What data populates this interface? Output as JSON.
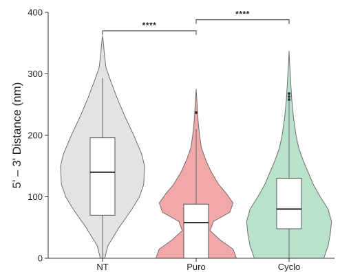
{
  "chart_data": {
    "type": "violin",
    "title": "",
    "ylabel": "5' – 3' Distance (nm)",
    "xlabel": "",
    "ylim": [
      0,
      400
    ],
    "yticks": [
      0,
      100,
      200,
      300,
      400
    ],
    "categories": [
      "NT",
      "Puro",
      "Cyclo"
    ],
    "series": [
      {
        "category": "NT",
        "color": "#e3e3e3",
        "min": 0,
        "q1": 70,
        "median": 140,
        "q3": 196,
        "max": 293,
        "density": [
          [
            0,
            0.05
          ],
          [
            20,
            0.12
          ],
          [
            50,
            0.38
          ],
          [
            80,
            0.68
          ],
          [
            100,
            0.85
          ],
          [
            120,
            0.95
          ],
          [
            150,
            0.97
          ],
          [
            170,
            0.9
          ],
          [
            200,
            0.72
          ],
          [
            230,
            0.52
          ],
          [
            260,
            0.34
          ],
          [
            290,
            0.18
          ],
          [
            310,
            0.08
          ],
          [
            330,
            0.045
          ],
          [
            350,
            0.02
          ],
          [
            362,
            0
          ]
        ]
      },
      {
        "category": "Puro",
        "color": "#f2a8a8",
        "min": 0,
        "q1": 0,
        "median": 58,
        "q3": 88,
        "max": 210,
        "density": [
          [
            0,
            0.93
          ],
          [
            15,
            0.85
          ],
          [
            30,
            0.55
          ],
          [
            45,
            0.32
          ],
          [
            60,
            0.4
          ],
          [
            75,
            0.78
          ],
          [
            90,
            0.85
          ],
          [
            105,
            0.7
          ],
          [
            120,
            0.52
          ],
          [
            140,
            0.35
          ],
          [
            160,
            0.22
          ],
          [
            180,
            0.12
          ],
          [
            200,
            0.08
          ],
          [
            220,
            0.05
          ],
          [
            240,
            0.03
          ],
          [
            260,
            0.015
          ],
          [
            275,
            0
          ]
        ],
        "outliers": [
          237
        ]
      },
      {
        "category": "Cyclo",
        "color": "#b8e2cb",
        "min": 0,
        "q1": 48,
        "median": 80,
        "q3": 130,
        "max": 255,
        "density": [
          [
            0,
            0.8
          ],
          [
            20,
            0.9
          ],
          [
            40,
            0.95
          ],
          [
            60,
            0.98
          ],
          [
            80,
            0.9
          ],
          [
            100,
            0.72
          ],
          [
            120,
            0.56
          ],
          [
            140,
            0.44
          ],
          [
            160,
            0.32
          ],
          [
            180,
            0.22
          ],
          [
            200,
            0.16
          ],
          [
            230,
            0.1
          ],
          [
            260,
            0.06
          ],
          [
            290,
            0.035
          ],
          [
            315,
            0.015
          ],
          [
            337,
            0
          ]
        ],
        "outliers": [
          268,
          263,
          258
        ]
      }
    ],
    "significance": [
      {
        "from": "NT",
        "to": "Puro",
        "label": "****",
        "y": 370
      },
      {
        "from": "Puro",
        "to": "Cyclo",
        "label": "****",
        "y": 388
      }
    ]
  }
}
